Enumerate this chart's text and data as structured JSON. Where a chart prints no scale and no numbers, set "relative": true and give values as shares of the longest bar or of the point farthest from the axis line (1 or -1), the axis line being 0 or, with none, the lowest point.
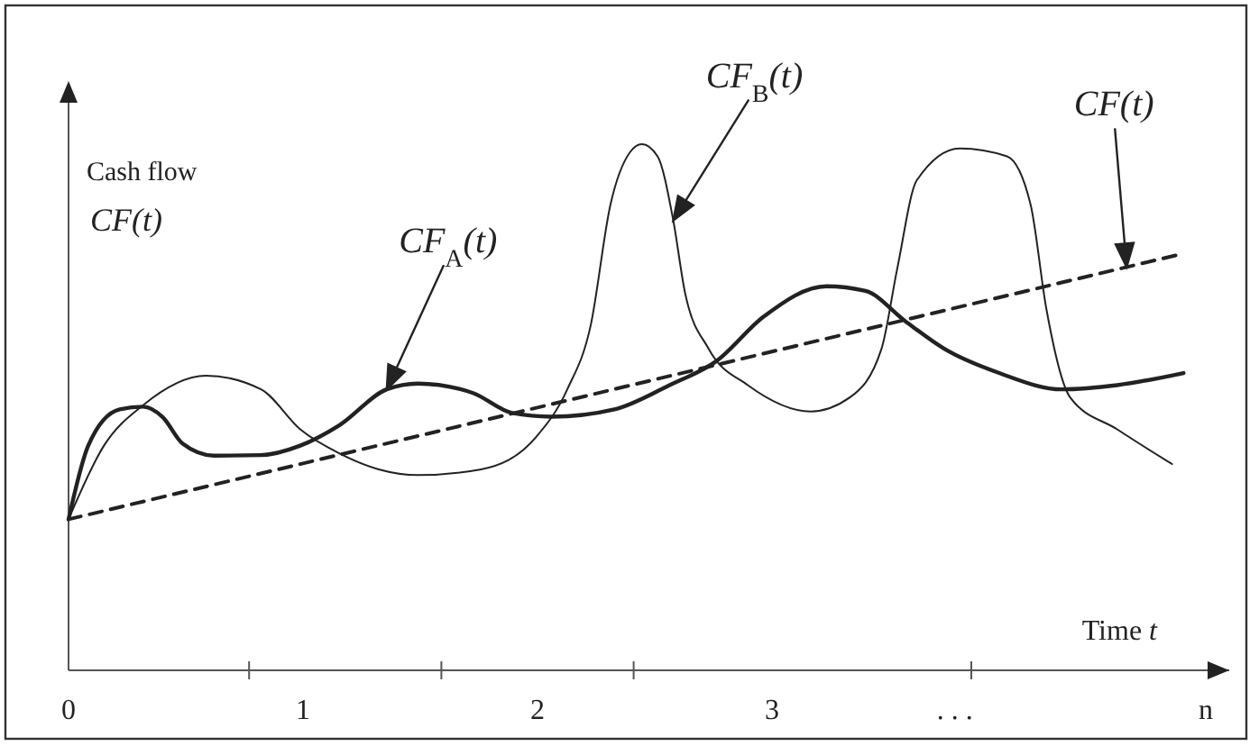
{
  "chart_data": {
    "type": "line",
    "relative": true,
    "ylabel": "Cash flow\nCF(t)",
    "xlabel": "Time t",
    "xlim": [
      0,
      4.95
    ],
    "xticks": [
      0,
      {
        "value": 0.77,
        "label": null
      },
      1,
      {
        "value": 1.59,
        "label": null
      },
      2,
      {
        "value": 2.41,
        "label": null
      },
      3,
      {
        "value": 3.78,
        "label": ". . ."
      },
      {
        "value": 3.85,
        "label": null
      },
      {
        "value": 4.85,
        "label": "n"
      }
    ],
    "series": [
      {
        "name": "CF$_{A}$(t)",
        "color": "#222222",
        "x": [
          0,
          0.084,
          0.218,
          0.318,
          0.402,
          0.486,
          0.62,
          0.821,
          0.988,
          1.156,
          1.357,
          1.49,
          1.725,
          1.892,
          2.06,
          2.328,
          2.563,
          2.764,
          2.964,
          3.232,
          3.399,
          3.567,
          3.735,
          3.969,
          4.237,
          4.472,
          4.755
        ],
        "values": [
          0.287,
          0.427,
          0.496,
          0.501,
          0.481,
          0.431,
          0.408,
          0.409,
          0.427,
          0.466,
          0.534,
          0.545,
          0.527,
          0.489,
          0.482,
          0.496,
          0.542,
          0.588,
          0.672,
          0.73,
          0.721,
          0.664,
          0.611,
          0.565,
          0.534,
          0.542,
          0.565
        ]
      },
      {
        "name": "CF$_{B}$(t)",
        "color": "#222222",
        "x": [
          0,
          0.151,
          0.318,
          0.586,
          0.821,
          0.988,
          1.156,
          1.323,
          1.49,
          1.759,
          1.993,
          2.127,
          2.227,
          2.311,
          2.395,
          2.445,
          2.512,
          2.579,
          2.629,
          2.73,
          2.897,
          3.165,
          3.333,
          3.467,
          3.534,
          3.617,
          3.801,
          4.002,
          4.103,
          4.17,
          4.271,
          4.472,
          4.706
        ],
        "values": [
          0.287,
          0.427,
          0.504,
          0.56,
          0.534,
          0.458,
          0.412,
          0.382,
          0.371,
          0.382,
          0.443,
          0.534,
          0.656,
          0.885,
          0.985,
          1,
          0.977,
          0.855,
          0.718,
          0.611,
          0.542,
          0.492,
          0.519,
          0.611,
          0.763,
          0.931,
          0.992,
          0.977,
          0.885,
          0.687,
          0.519,
          0.458,
          0.392
        ]
      },
      {
        "name": "CF(t)",
        "color": "#222222",
        "line_style": "dashed",
        "x": [
          0,
          4.725
        ],
        "values": [
          0.287,
          0.789
        ]
      }
    ]
  }
}
